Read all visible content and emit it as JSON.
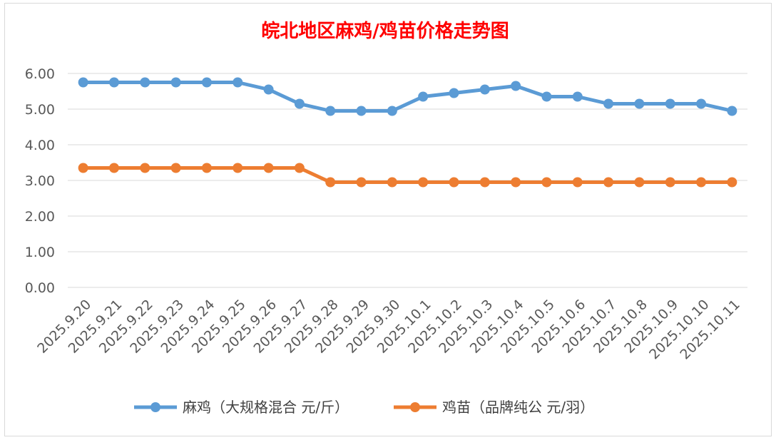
{
  "chart_data": {
    "type": "line",
    "title": "皖北地区麻鸡/鸡苗价格走势图",
    "xlabel": "",
    "ylabel": "",
    "ylim": [
      0,
      6
    ],
    "y_ticks": [
      "0.00",
      "1.00",
      "2.00",
      "3.00",
      "4.00",
      "5.00",
      "6.00"
    ],
    "grid": true,
    "legend_position": "bottom",
    "categories": [
      "2025.9.20",
      "2025.9.21",
      "2025.9.22",
      "2025.9.23",
      "2025.9.24",
      "2025.9.25",
      "2025.9.26",
      "2025.9.27",
      "2025.9.28",
      "2025.9.29",
      "2025.9.30",
      "2025.10.1",
      "2025.10.2",
      "2025.10.3",
      "2025.10.4",
      "2025.10.5",
      "2025.10.6",
      "2025.10.7",
      "2025.10.8",
      "2025.10.9",
      "2025.10.10",
      "2025.10.11"
    ],
    "series": [
      {
        "name": "麻鸡（大规格混合 元/斤）",
        "color": "#5b9bd5",
        "values": [
          5.75,
          5.75,
          5.75,
          5.75,
          5.75,
          5.75,
          5.55,
          5.15,
          4.95,
          4.95,
          4.95,
          5.35,
          5.45,
          5.55,
          5.65,
          5.35,
          5.35,
          5.15,
          5.15,
          5.15,
          5.15,
          4.95
        ]
      },
      {
        "name": "鸡苗（品牌纯公 元/羽）",
        "color": "#ed7d31",
        "values": [
          3.35,
          3.35,
          3.35,
          3.35,
          3.35,
          3.35,
          3.35,
          3.35,
          2.95,
          2.95,
          2.95,
          2.95,
          2.95,
          2.95,
          2.95,
          2.95,
          2.95,
          2.95,
          2.95,
          2.95,
          2.95,
          2.95
        ]
      }
    ],
    "colors": {
      "title": "#ff0000",
      "grid": "#d9d9d9",
      "tick_text": "#595959",
      "legend_text": "#404040"
    }
  }
}
